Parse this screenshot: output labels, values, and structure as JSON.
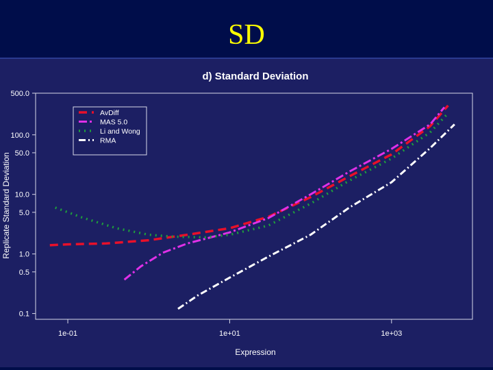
{
  "slide": {
    "title": "SD"
  },
  "colors": {
    "header_bg": "#000d4a",
    "title": "#ffff00",
    "plot_bg": "#1c1f63"
  },
  "chart_data": {
    "type": "line",
    "title": "d) Standard Deviation",
    "xlabel": "Expression",
    "ylabel": "Replicate Standard Deviation",
    "x_scale": "log",
    "y_scale": "log",
    "xlim": [
      0.04,
      10000.0
    ],
    "ylim": [
      0.08,
      500
    ],
    "x_ticks": [
      0.1,
      10,
      1000
    ],
    "x_tick_labels": [
      "1e-01",
      "1e+01",
      "1e+03"
    ],
    "y_ticks": [
      500,
      100,
      50,
      10,
      5,
      1,
      0.5,
      0.1
    ],
    "y_tick_labels": [
      "500.0",
      "100.0",
      "50.0",
      "10.0",
      "5.0",
      "1.0",
      "0.5",
      "0.1"
    ],
    "legend_position": "top-left",
    "grid": false,
    "series": [
      {
        "name": "AvDiff",
        "color": "#e8102a",
        "dash": "12,7",
        "width": 3.5,
        "x": [
          0.06,
          0.1,
          0.3,
          1,
          3,
          10,
          30,
          100,
          300,
          1000,
          3000,
          5000
        ],
        "y": [
          1.4,
          1.45,
          1.5,
          1.7,
          2.1,
          2.7,
          4.2,
          9,
          20,
          47,
          140,
          310
        ]
      },
      {
        "name": "MAS 5.0",
        "color": "#e030e8",
        "dash": "12,4,3,4",
        "width": 3,
        "x": [
          0.5,
          0.8,
          1.5,
          3,
          10,
          30,
          100,
          300,
          1000,
          3000,
          4500
        ],
        "y": [
          0.37,
          0.62,
          1.05,
          1.5,
          2.3,
          4,
          10,
          24,
          58,
          150,
          290
        ]
      },
      {
        "name": "Li and Wong",
        "color": "#1e9e3c",
        "dash": "2,6",
        "width": 3.5,
        "x": [
          0.07,
          0.15,
          0.4,
          1,
          2,
          5,
          10,
          30,
          100,
          300,
          1000,
          3000,
          5000
        ],
        "y": [
          6,
          4.1,
          2.7,
          2.1,
          1.95,
          1.9,
          2.1,
          3,
          7,
          17,
          40,
          110,
          230
        ]
      },
      {
        "name": "RMA",
        "color": "#ffffff",
        "dash": "10,4,2,4",
        "width": 3,
        "x": [
          2.3,
          4,
          10,
          30,
          100,
          300,
          1000,
          3000,
          6000
        ],
        "y": [
          0.12,
          0.2,
          0.4,
          0.9,
          2.1,
          6,
          16,
          60,
          150
        ]
      }
    ]
  }
}
